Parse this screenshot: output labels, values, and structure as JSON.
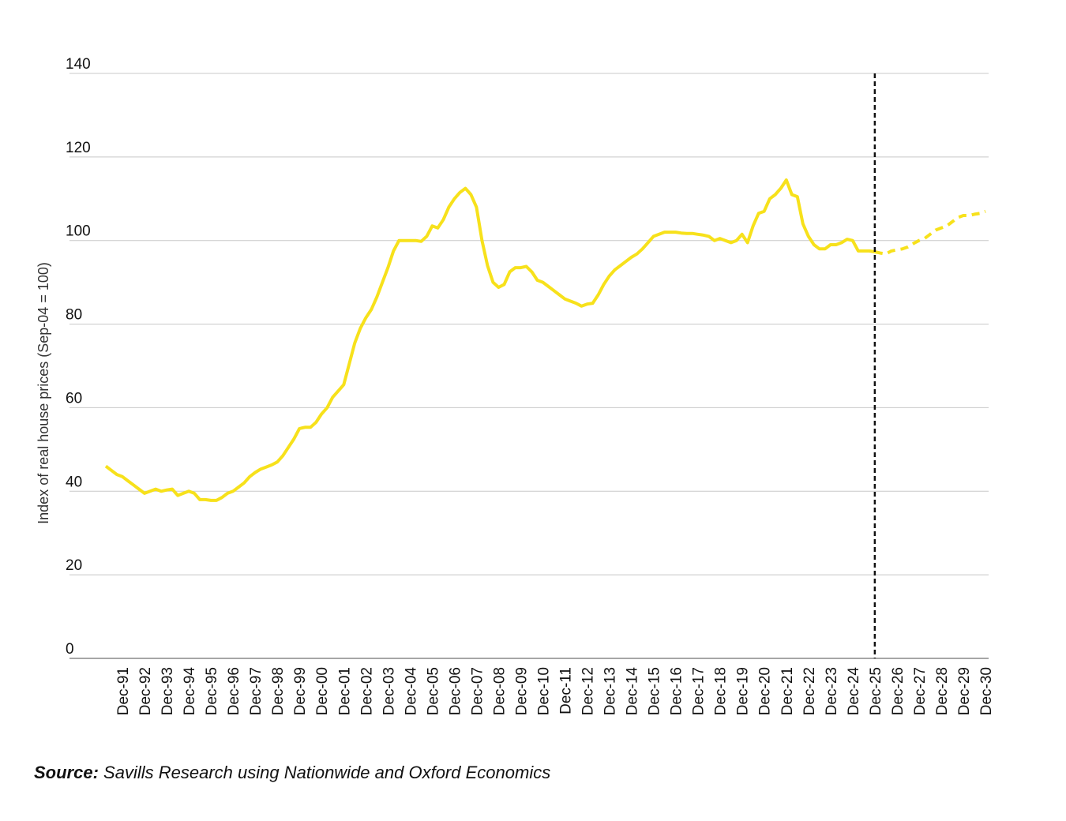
{
  "chart_data": {
    "type": "line",
    "y_axis_label": "Index of real house prices (Sep-04 = 100)",
    "source_label": "Source:",
    "source": "Savills Research using Nationwide and Oxford Economics",
    "categories": [
      null,
      null,
      null,
      "Dec-91",
      null,
      null,
      null,
      "Dec-92",
      null,
      null,
      null,
      "Dec-93",
      null,
      null,
      null,
      "Dec-94",
      null,
      null,
      null,
      "Dec-95",
      null,
      null,
      null,
      "Dec-96",
      null,
      null,
      null,
      "Dec-97",
      null,
      null,
      null,
      "Dec-98",
      null,
      null,
      null,
      "Dec-99",
      null,
      null,
      null,
      "Dec-00",
      null,
      null,
      null,
      "Dec-01",
      null,
      null,
      null,
      "Dec-02",
      null,
      null,
      null,
      "Dec-03",
      null,
      null,
      null,
      "Dec-04",
      null,
      null,
      null,
      "Dec-05",
      null,
      null,
      null,
      "Dec-06",
      null,
      null,
      null,
      "Dec-07",
      null,
      null,
      null,
      "Dec-08",
      null,
      null,
      null,
      "Dec-09",
      null,
      null,
      null,
      "Dec-10",
      null,
      null,
      null,
      "Dec-11",
      null,
      null,
      null,
      "Dec-12",
      null,
      null,
      null,
      "Dec-13",
      null,
      null,
      null,
      "Dec-14",
      null,
      null,
      null,
      "Dec-15",
      null,
      null,
      null,
      "Dec-16",
      null,
      null,
      null,
      "Dec-17",
      null,
      null,
      null,
      "Dec-18",
      null,
      null,
      null,
      "Dec-19",
      null,
      null,
      null,
      "Dec-20",
      null,
      null,
      null,
      "Dec-21",
      null,
      null,
      null,
      "Dec-22",
      null,
      null,
      null,
      "Dec-23",
      null,
      null,
      null,
      "Dec-24",
      null,
      null,
      null,
      "Dec-25",
      null,
      null,
      null,
      "Dec-26",
      null,
      null,
      null,
      "Dec-27",
      null,
      null,
      null,
      "Dec-28",
      null,
      null,
      null,
      "Dec-29",
      null,
      null,
      null,
      "Dec-30"
    ],
    "series": [
      {
        "color": "#f7e11b",
        "dashed": false,
        "values": [
          46,
          45,
          44,
          43.5,
          42.5,
          41.5,
          40.5,
          39.5,
          40,
          40.5,
          40,
          40.3,
          40.5,
          39,
          39.5,
          40,
          39.5,
          38,
          38,
          37.8,
          37.8,
          38.5,
          39.5,
          40,
          41,
          42,
          43.5,
          44.5,
          45.3,
          45.8,
          46.3,
          47,
          48.5,
          50.5,
          52.5,
          55,
          55.3,
          55.3,
          56.5,
          58.5,
          60,
          62.5,
          64,
          65.5,
          70.5,
          75.5,
          79,
          81.5,
          83.5,
          86.5,
          90,
          93.5,
          97.5,
          100,
          100,
          100,
          100,
          99.8,
          101,
          103.5,
          103,
          105,
          108,
          110,
          111.5,
          112.5,
          111,
          108,
          100,
          94,
          90,
          88.8,
          89.5,
          92.5,
          93.5,
          93.5,
          93.8,
          92.5,
          90.5,
          90,
          89,
          88,
          87,
          86,
          85.5,
          85,
          84.3,
          84.8,
          85,
          87,
          89.5,
          91.5,
          93,
          94,
          95,
          96,
          96.8,
          98,
          99.5,
          101,
          101.5,
          102,
          102,
          102,
          101.8,
          101.7,
          101.7,
          101.5,
          101.3,
          101,
          100,
          100.5,
          100,
          99.5,
          100,
          101.5,
          99.5,
          103.5,
          106.5,
          107,
          110,
          111,
          112.5,
          114.5,
          111,
          110.5,
          104,
          101,
          99,
          98,
          98,
          99,
          99,
          99.5,
          100.3,
          100,
          97.5,
          97.5,
          97.5,
          97.3,
          null,
          null,
          null,
          null,
          null,
          null,
          null,
          null,
          null,
          null,
          null,
          null,
          null,
          null,
          null,
          null,
          null,
          null,
          null,
          null
        ]
      },
      {
        "color": "#f7e11b",
        "dashed": true,
        "values": [
          null,
          null,
          null,
          null,
          null,
          null,
          null,
          null,
          null,
          null,
          null,
          null,
          null,
          null,
          null,
          null,
          null,
          null,
          null,
          null,
          null,
          null,
          null,
          null,
          null,
          null,
          null,
          null,
          null,
          null,
          null,
          null,
          null,
          null,
          null,
          null,
          null,
          null,
          null,
          null,
          null,
          null,
          null,
          null,
          null,
          null,
          null,
          null,
          null,
          null,
          null,
          null,
          null,
          null,
          null,
          null,
          null,
          null,
          null,
          null,
          null,
          null,
          null,
          null,
          null,
          null,
          null,
          null,
          null,
          null,
          null,
          null,
          null,
          null,
          null,
          null,
          null,
          null,
          null,
          null,
          null,
          null,
          null,
          null,
          null,
          null,
          null,
          null,
          null,
          null,
          null,
          null,
          null,
          null,
          null,
          null,
          null,
          null,
          null,
          null,
          null,
          null,
          null,
          null,
          null,
          null,
          null,
          null,
          null,
          null,
          null,
          null,
          null,
          null,
          null,
          null,
          null,
          null,
          null,
          null,
          null,
          null,
          null,
          null,
          null,
          null,
          null,
          null,
          null,
          null,
          null,
          null,
          null,
          null,
          null,
          null,
          null,
          null,
          null,
          97.3,
          97,
          96.8,
          97.5,
          97.8,
          98,
          98.5,
          99.3,
          100,
          100.5,
          101.5,
          102.5,
          103,
          103.5,
          104.5,
          105.5,
          106,
          106,
          106.3,
          106.5,
          107
        ]
      }
    ],
    "ylim": [
      0,
      140
    ],
    "yticks": [
      0,
      20,
      40,
      60,
      80,
      100,
      120,
      140
    ],
    "grid": true
  }
}
